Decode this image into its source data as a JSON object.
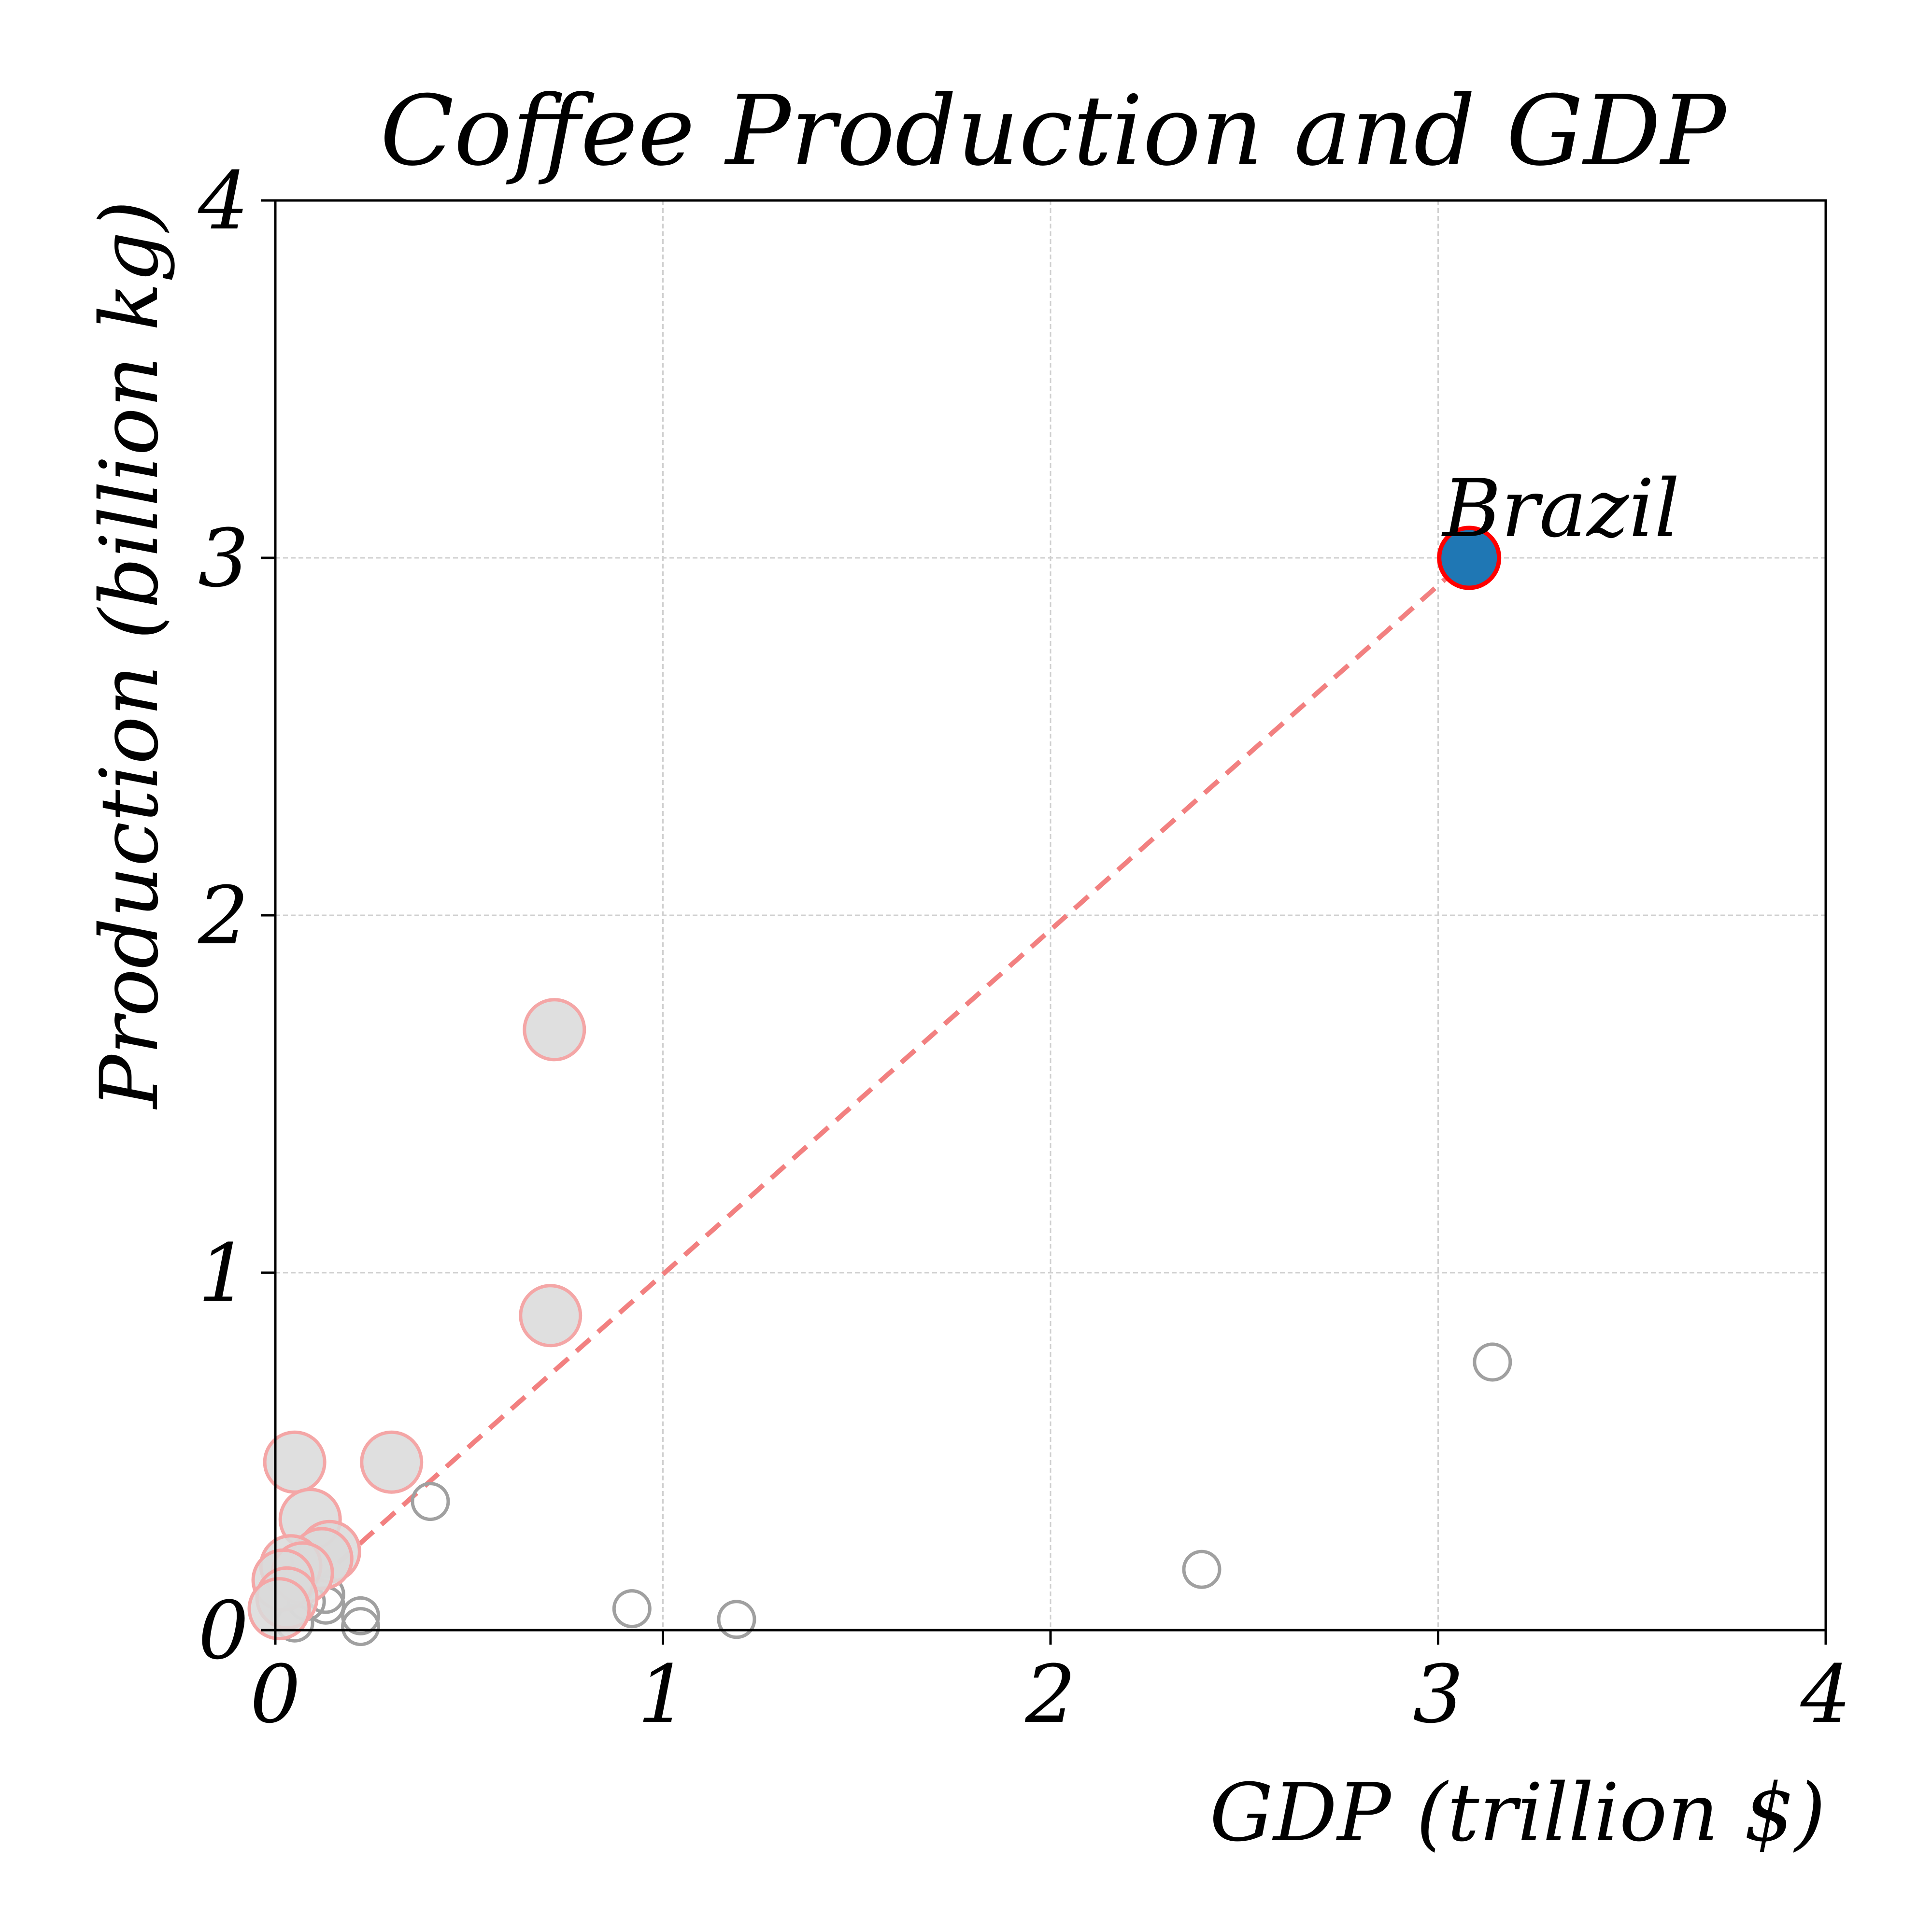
{
  "chart_data": {
    "type": "scatter",
    "title": "Coffee Production and GDP",
    "xlabel": "GDP (trillion $)",
    "ylabel": "Production (billion kg)",
    "xlim": [
      0,
      4
    ],
    "ylim": [
      0,
      4
    ],
    "x_ticks": [
      "0",
      "1",
      "2",
      "3",
      "4"
    ],
    "y_ticks": [
      "0",
      "1",
      "2",
      "3",
      "4"
    ],
    "grid": true,
    "colors": {
      "highlight_fill": "#1f77b4",
      "highlight_edge": "#ff0000",
      "faded_fill": "#d9d9d9",
      "faded_edge": "#f4a6a6",
      "outline_edge": "#a0a0a0",
      "trend_line": "#f28080"
    },
    "highlight": {
      "label": "Brazil",
      "x": 3.08,
      "y": 3.0
    },
    "faded_points": [
      {
        "x": 0.72,
        "y": 1.68
      },
      {
        "x": 0.71,
        "y": 0.88
      },
      {
        "x": 0.3,
        "y": 0.47
      },
      {
        "x": 0.05,
        "y": 0.47
      },
      {
        "x": 0.09,
        "y": 0.31
      },
      {
        "x": 0.14,
        "y": 0.22
      },
      {
        "x": 0.12,
        "y": 0.2
      },
      {
        "x": 0.04,
        "y": 0.18
      },
      {
        "x": 0.07,
        "y": 0.16
      },
      {
        "x": 0.02,
        "y": 0.14
      },
      {
        "x": 0.03,
        "y": 0.09
      },
      {
        "x": 0.01,
        "y": 0.06
      }
    ],
    "outline_points": [
      {
        "x": 3.14,
        "y": 0.75
      },
      {
        "x": 0.4,
        "y": 0.36
      },
      {
        "x": 2.39,
        "y": 0.17
      },
      {
        "x": 0.92,
        "y": 0.06
      },
      {
        "x": 1.19,
        "y": 0.03
      },
      {
        "x": 0.22,
        "y": 0.04
      },
      {
        "x": 0.13,
        "y": 0.1
      },
      {
        "x": 0.13,
        "y": 0.07
      },
      {
        "x": 0.08,
        "y": 0.08
      },
      {
        "x": 0.05,
        "y": 0.02
      },
      {
        "x": 0.22,
        "y": 0.01
      }
    ],
    "trend_line": {
      "from": [
        0.05,
        0.08
      ],
      "to": [
        3.08,
        3.0
      ]
    }
  }
}
